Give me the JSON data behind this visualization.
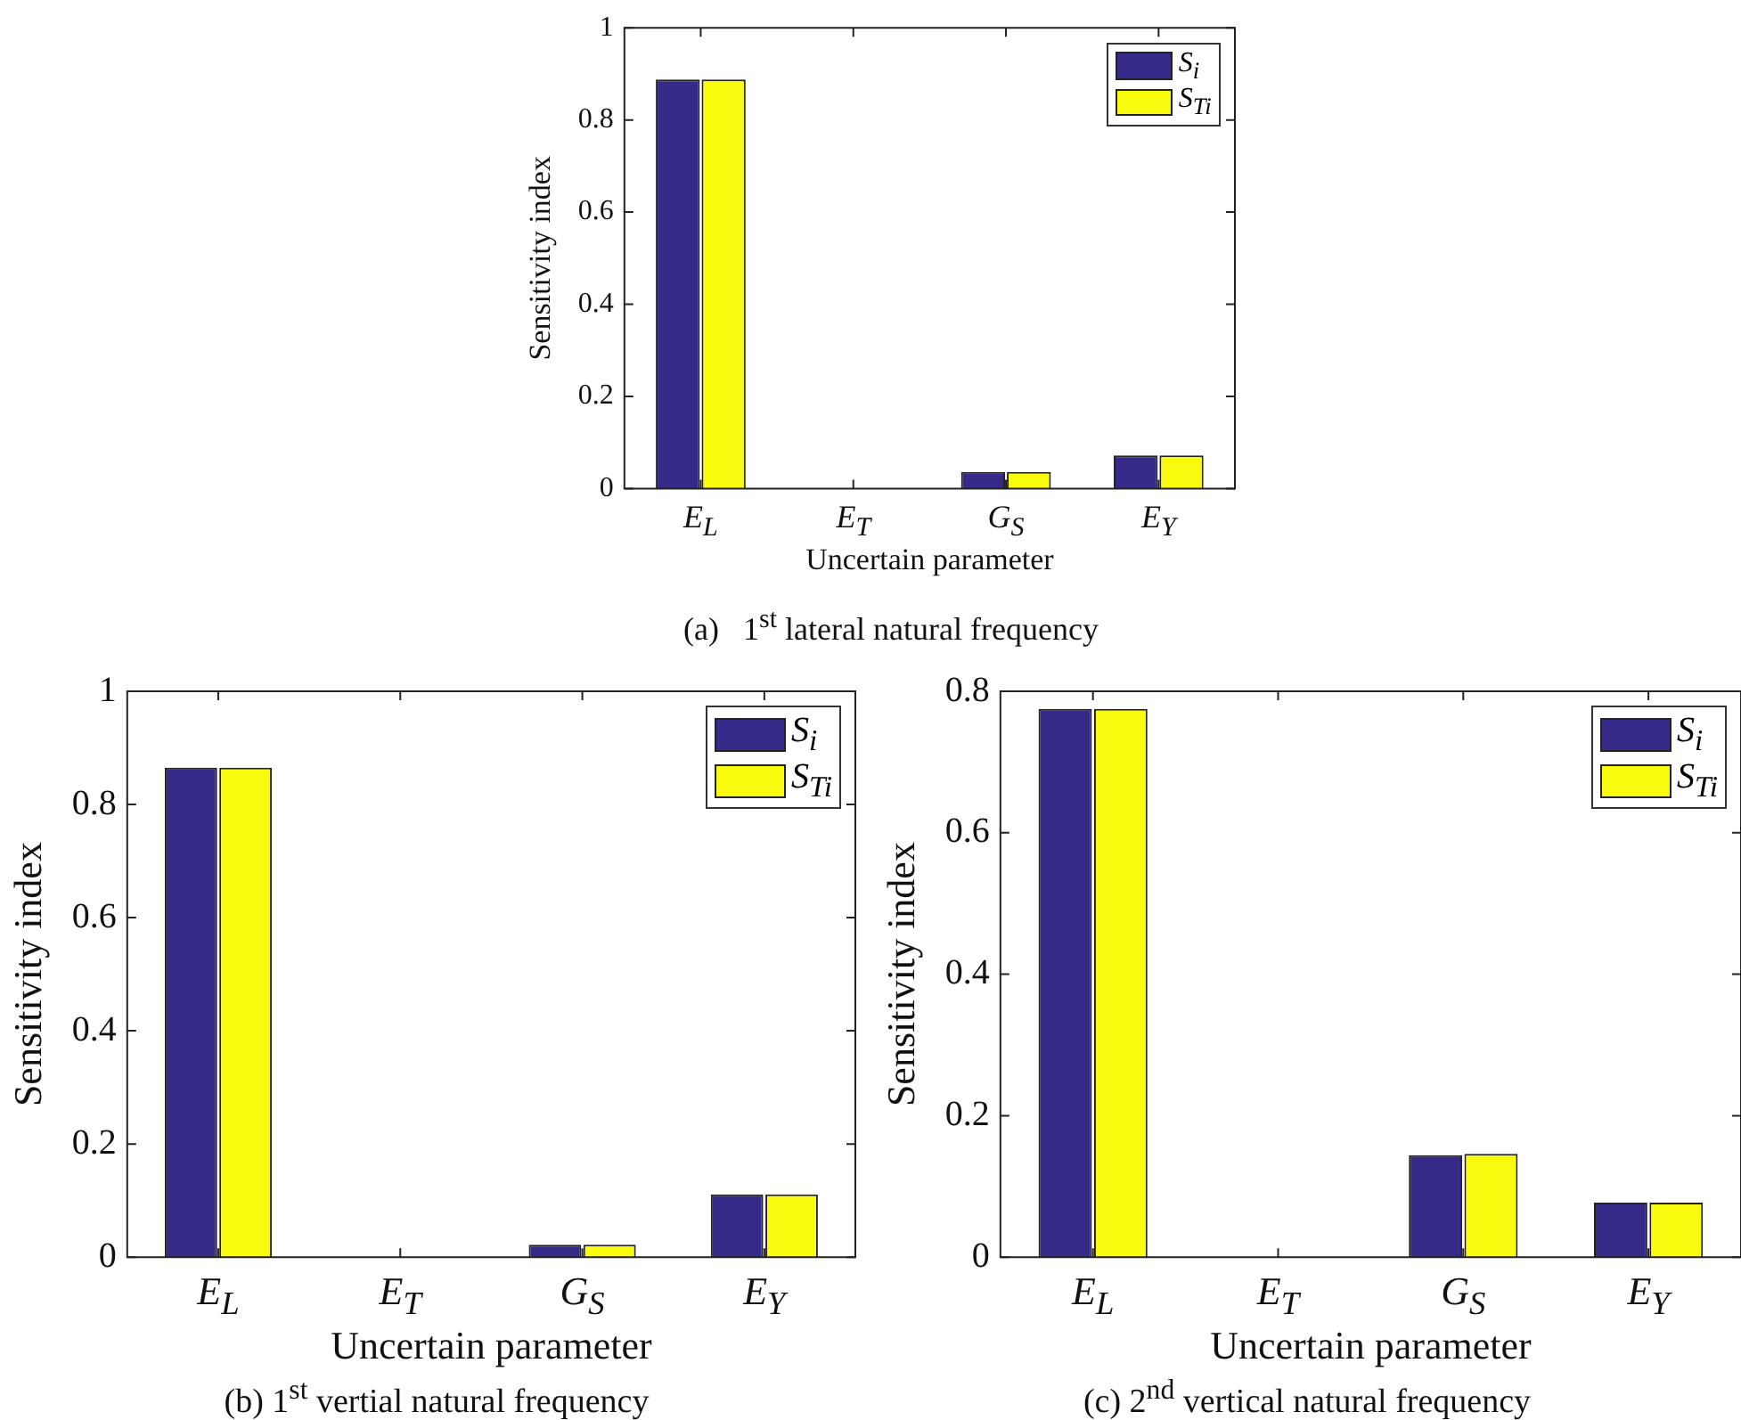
{
  "chart_data": [
    {
      "type": "bar",
      "title": "(a)   1$^{st}$ lateral natural frequency",
      "xlabel": "Uncertain parameter",
      "ylabel": "Sensitivity index",
      "categories": [
        "E$_{L}$",
        "E$_{T}$",
        "G$_{S}$",
        "E$_{Y}$"
      ],
      "series": [
        {
          "name": "S$_{i}$",
          "color": "#352a87",
          "values": [
            0.888,
            0,
            0.036,
            0.072
          ]
        },
        {
          "name": "S$_{Ti}$",
          "color": "#f9fb0e",
          "values": [
            0.888,
            0,
            0.036,
            0.072
          ]
        }
      ],
      "ylim": [
        0,
        1
      ],
      "yticks": [
        0,
        0.2,
        0.4,
        0.6,
        0.8,
        1
      ],
      "grid": false,
      "legend": "top right"
    },
    {
      "type": "bar",
      "title": "(b) 1$^{st}$ vertial natural frequency",
      "xlabel": "Uncertain parameter",
      "ylabel": "Sensitivity index",
      "categories": [
        "E$_{L}$",
        "E$_{T}$",
        "G$_{S}$",
        "E$_{Y}$"
      ],
      "series": [
        {
          "name": "S$_{i}$",
          "color": "#352a87",
          "values": [
            0.865,
            0,
            0.022,
            0.111
          ]
        },
        {
          "name": "S$_{Ti}$",
          "color": "#f9fb0e",
          "values": [
            0.865,
            0,
            0.022,
            0.111
          ]
        }
      ],
      "ylim": [
        0,
        1
      ],
      "yticks": [
        0,
        0.2,
        0.4,
        0.6,
        0.8,
        1
      ],
      "grid": false,
      "legend": "top right"
    },
    {
      "type": "bar",
      "title": "(c) 2$^{nd}$ vertical natural frequency",
      "xlabel": "Uncertain parameter",
      "ylabel": "Sensitivity index",
      "categories": [
        "E$_{L}$",
        "E$_{T}$",
        "G$_{S}$",
        "E$_{Y}$"
      ],
      "series": [
        {
          "name": "S$_{i}$",
          "color": "#352a87",
          "values": [
            0.775,
            0,
            0.144,
            0.077
          ]
        },
        {
          "name": "S$_{Ti}$",
          "color": "#f9fb0e",
          "values": [
            0.775,
            0,
            0.146,
            0.077
          ]
        }
      ],
      "ylim": [
        0,
        0.8
      ],
      "yticks": [
        0,
        0.2,
        0.4,
        0.6,
        0.8
      ],
      "grid": false,
      "legend": "top right"
    }
  ]
}
